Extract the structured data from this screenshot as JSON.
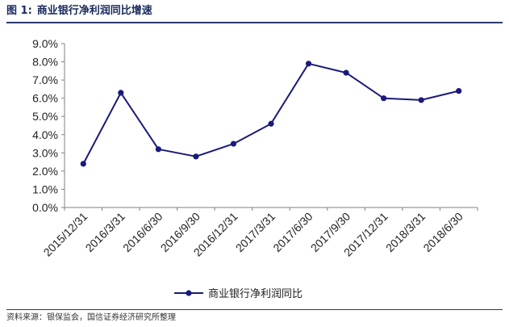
{
  "figure": {
    "label": "图 1:",
    "title": "商业银行净利润同比增速",
    "source": "资料来源：银保监会，国信证券经济研究所整理"
  },
  "chart_data": {
    "type": "line",
    "title": "商业银行净利润同比增速",
    "xlabel": "",
    "ylabel": "",
    "categories": [
      "2015/12/31",
      "2016/3/31",
      "2016/6/30",
      "2016/9/30",
      "2016/12/31",
      "2017/3/31",
      "2017/6/30",
      "2017/9/30",
      "2017/12/31",
      "2018/3/31",
      "2018/6/30"
    ],
    "series": [
      {
        "name": "商业银行净利润同比",
        "values": [
          2.4,
          6.3,
          3.2,
          2.8,
          3.5,
          4.6,
          7.9,
          7.4,
          6.0,
          5.9,
          6.4
        ],
        "color": "#1a1a7a"
      }
    ],
    "y_ticks": [
      "0.0%",
      "1.0%",
      "2.0%",
      "3.0%",
      "4.0%",
      "5.0%",
      "6.0%",
      "7.0%",
      "8.0%",
      "9.0%"
    ],
    "ylim": [
      0,
      9
    ],
    "grid": false,
    "legend": "bottom-center"
  }
}
